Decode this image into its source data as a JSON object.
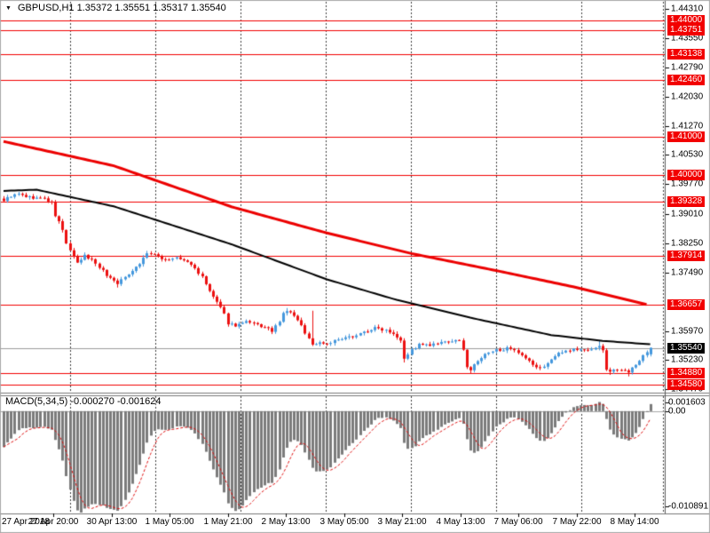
{
  "window": {
    "title_line": "GBPUSD,H1 1.35372 1.35551 1.35317 1.35540",
    "dropdown_icon": "▼"
  },
  "render_seed": 9,
  "colors": {
    "bull": "#4598dd",
    "bear": "#ec1010",
    "level": "#f20000",
    "ma_fast": "#ec0000",
    "ma_slow": "#000000",
    "macd_bar": "#7b7b7b",
    "macd_signal": "#e01010",
    "grid": "#3c3c3c",
    "current_line": "#9c9c9c",
    "current_badge_bg": "#000000",
    "badge_text": "#ffffff",
    "axis_line": "#5a5a5a",
    "frame": "#a9a9a9"
  },
  "chart_data": [
    {
      "type": "candlestick",
      "symbol": "GBPUSD",
      "timeframe": "H1",
      "title": "GBPUSD,H1",
      "ohlc_current": {
        "open": "1.35372",
        "high": "1.35551",
        "low": "1.35317",
        "close": "1.35540"
      },
      "ylim": [
        1.34426,
        1.44493
      ],
      "y_ticks": [
        "1.44310",
        "1.43550",
        "1.42790",
        "1.42030",
        "1.41270",
        "1.40530",
        "1.39770",
        "1.39010",
        "1.38250",
        "1.37490",
        "1.35970",
        "1.35230",
        "1.34470"
      ],
      "level_lines": [
        "1.44000",
        "1.43751",
        "1.43138",
        "1.42460",
        "1.41000",
        "1.40000",
        "1.39328",
        "1.37914",
        "1.36657",
        "1.34880",
        "1.34580"
      ],
      "current_price": "1.35540",
      "x_labels": [
        "27 Apr 2018",
        "27 Apr 20:00",
        "30 Apr 13:00",
        "1 May 05:00",
        "1 May 21:00",
        "2 May 13:00",
        "3 May 05:00",
        "3 May 21:00",
        "4 May 13:00",
        "7 May 06:00",
        "7 May 22:00",
        "8 May 14:00"
      ],
      "bars_per_label": 16,
      "bar_count": 177,
      "noise": 0.0007,
      "price_path": [
        [
          0,
          1.3936
        ],
        [
          2,
          1.3947
        ],
        [
          4,
          1.3951
        ],
        [
          7,
          1.3943
        ],
        [
          11,
          1.394
        ],
        [
          13,
          1.3928
        ],
        [
          14,
          1.3896
        ],
        [
          15,
          1.388
        ],
        [
          16,
          1.3858
        ],
        [
          17,
          1.3825
        ],
        [
          19,
          1.3787
        ],
        [
          20,
          1.3772
        ],
        [
          22,
          1.3792
        ],
        [
          24,
          1.3782
        ],
        [
          26,
          1.3764
        ],
        [
          28,
          1.3742
        ],
        [
          30,
          1.3728
        ],
        [
          31,
          1.3722
        ],
        [
          33,
          1.3736
        ],
        [
          35,
          1.3756
        ],
        [
          37,
          1.3772
        ],
        [
          39,
          1.38
        ],
        [
          41,
          1.3793
        ],
        [
          44,
          1.3782
        ],
        [
          47,
          1.3786
        ],
        [
          50,
          1.3776
        ],
        [
          52,
          1.376
        ],
        [
          54,
          1.3736
        ],
        [
          56,
          1.37
        ],
        [
          58,
          1.3672
        ],
        [
          60,
          1.364
        ],
        [
          61,
          1.3618
        ],
        [
          63,
          1.3612
        ],
        [
          66,
          1.362
        ],
        [
          69,
          1.3613
        ],
        [
          71,
          1.3606
        ],
        [
          73,
          1.3598
        ],
        [
          75,
          1.362
        ],
        [
          76,
          1.3642
        ],
        [
          77,
          1.365
        ],
        [
          79,
          1.3638
        ],
        [
          81,
          1.361
        ],
        [
          83,
          1.3578
        ],
        [
          84,
          1.3562
        ],
        [
          86,
          1.3568
        ],
        [
          88,
          1.3565
        ],
        [
          90,
          1.3572
        ],
        [
          93,
          1.3578
        ],
        [
          96,
          1.3588
        ],
        [
          99,
          1.3598
        ],
        [
          101,
          1.3605
        ],
        [
          104,
          1.3601
        ],
        [
          106,
          1.3592
        ],
        [
          108,
          1.3575
        ],
        [
          109,
          1.3528
        ],
        [
          111,
          1.3548
        ],
        [
          113,
          1.3562
        ],
        [
          116,
          1.356
        ],
        [
          119,
          1.3566
        ],
        [
          122,
          1.3572
        ],
        [
          124,
          1.357
        ],
        [
          125,
          1.3552
        ],
        [
          126,
          1.3505
        ],
        [
          127,
          1.3497
        ],
        [
          129,
          1.352
        ],
        [
          131,
          1.3536
        ],
        [
          134,
          1.3548
        ],
        [
          137,
          1.3552
        ],
        [
          139,
          1.3545
        ],
        [
          141,
          1.3532
        ],
        [
          143,
          1.3518
        ],
        [
          145,
          1.3504
        ],
        [
          146,
          1.35
        ],
        [
          148,
          1.3515
        ],
        [
          150,
          1.3532
        ],
        [
          152,
          1.3545
        ],
        [
          155,
          1.355
        ],
        [
          158,
          1.3548
        ],
        [
          161,
          1.3553
        ],
        [
          162,
          1.356
        ],
        [
          163,
          1.3545
        ],
        [
          164,
          1.35
        ],
        [
          165,
          1.3492
        ],
        [
          167,
          1.35
        ],
        [
          169,
          1.3498
        ],
        [
          170,
          1.349
        ],
        [
          172,
          1.351
        ],
        [
          174,
          1.3535
        ],
        [
          176,
          1.3554
        ]
      ],
      "wick_spikes": [
        [
          31,
          "low",
          1.371
        ],
        [
          77,
          "high",
          1.3657
        ],
        [
          84,
          "high",
          1.365
        ],
        [
          109,
          "low",
          1.3516
        ],
        [
          127,
          "low",
          1.3487
        ],
        [
          146,
          "low",
          1.3496
        ],
        [
          162,
          "high",
          1.3573
        ],
        [
          165,
          "low",
          1.3484
        ],
        [
          170,
          "low",
          1.348
        ]
      ],
      "last_candle": [
        1.35372,
        1.35551,
        1.35317,
        1.3554
      ],
      "moving_averages": [
        {
          "name": "ma-slow-black",
          "color_key": "ma_slow",
          "width": 2,
          "points": [
            [
              0,
              1.396
            ],
            [
              9,
              1.3963
            ],
            [
              30,
              1.392
            ],
            [
              62,
              1.3822
            ],
            [
              88,
              1.3731
            ],
            [
              107,
              1.3678
            ],
            [
              127,
              1.3632
            ],
            [
              149,
              1.3587
            ],
            [
              163,
              1.3572
            ],
            [
              176,
              1.3563
            ]
          ]
        },
        {
          "name": "ma-fast-red",
          "color_key": "ma_fast",
          "width": 3,
          "points": [
            [
              0,
              1.4088
            ],
            [
              30,
              1.4025
            ],
            [
              62,
              1.3919
            ],
            [
              88,
              1.3851
            ],
            [
              111,
              1.3798
            ],
            [
              134,
              1.3754
            ],
            [
              155,
              1.3712
            ],
            [
              175,
              1.3666
            ]
          ]
        }
      ]
    },
    {
      "type": "macd",
      "label": "MACD(5,34,5) -0.000270 -0.001624",
      "params": [
        5,
        34,
        5
      ],
      "macd_current": "-0.000270",
      "signal_current": "-0.001624",
      "ylim": [
        -0.010891,
        0.001603
      ],
      "y_ticks": [
        "0.001603",
        "0.00",
        "-0.010891"
      ],
      "warmup_offset": 0.0039
    }
  ]
}
